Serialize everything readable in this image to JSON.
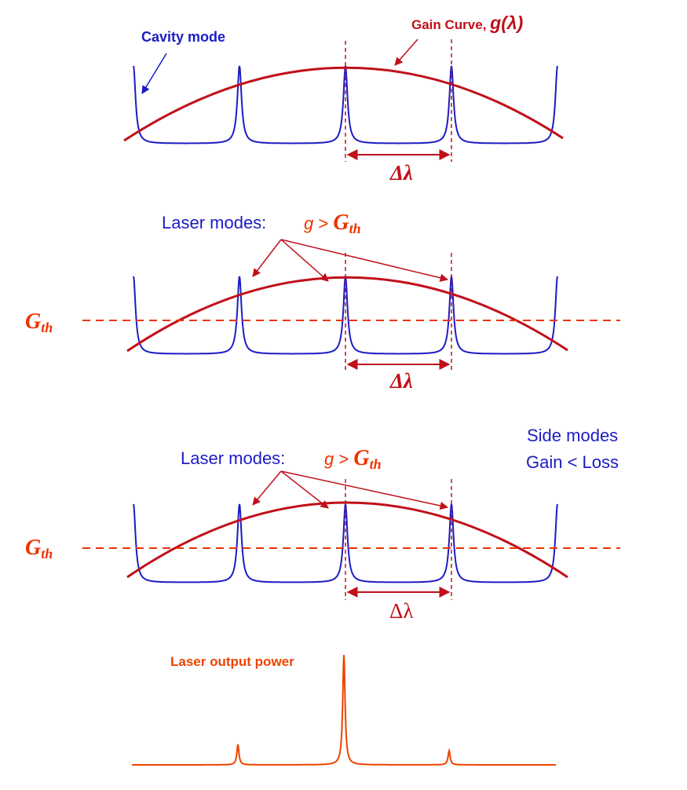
{
  "colors": {
    "cavity_mode": "#1c1cc4",
    "gain_curve": "#c0101a",
    "threshold": "#ee3300",
    "laser_output": "#ee4400",
    "side_text": "#1c1cc4"
  },
  "panel1": {
    "cavity_mode_label": "Cavity mode",
    "gain_curve_label": "Gain Curve, ",
    "gain_symbol": "g(λ)",
    "spacing_label": "Δλ"
  },
  "panel2": {
    "laser_modes_label": "Laser modes:",
    "condition_g": "g",
    "condition_gt": " > ",
    "G": "G",
    "th": "th",
    "threshold_G": "G",
    "threshold_th": "th",
    "spacing_label": "Δλ"
  },
  "panel3": {
    "laser_modes_label": "Laser modes:",
    "condition_g": "g",
    "condition_gt": " > ",
    "G": "G",
    "th": "th",
    "threshold_G": "G",
    "threshold_th": "th",
    "spacing_label": "Δλ",
    "side_modes_line1": "Side modes",
    "side_modes_line2": "Gain < Loss"
  },
  "panel4": {
    "output_label": "Laser output power"
  }
}
